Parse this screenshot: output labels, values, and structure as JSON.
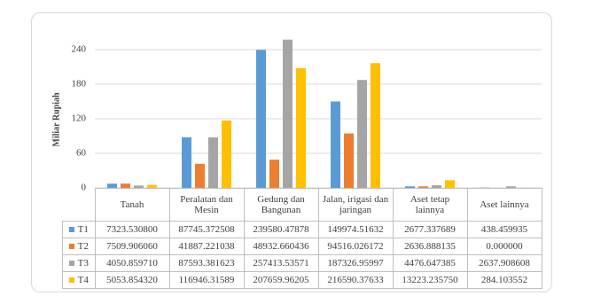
{
  "chart_data": {
    "type": "bar",
    "y_label": "Miliar Rupiah",
    "categories": [
      "Tanah",
      "Peralatan dan Mesin",
      "Gedung dan Bangunan",
      "Jalan, irigasi dan jaringan",
      "Aset tetap lainnya",
      "Aset lainnya"
    ],
    "series": [
      {
        "name": "T1",
        "color": "#5b9bd5",
        "values": [
          7.3235308,
          87.745372508,
          239.58047878,
          149.97451632,
          2.677337689,
          0.438459935
        ],
        "value_labels": [
          "7323.530800",
          "87745.372508",
          "239580.47878",
          "149974.51632",
          "2677.337689",
          "438.459935"
        ]
      },
      {
        "name": "T2",
        "color": "#ed7d31",
        "values": [
          7.50990606,
          41.887221038,
          48.932660436,
          94.516026172,
          2.636888135,
          0
        ],
        "value_labels": [
          "7509.906060",
          "41887.221038",
          "48932.660436",
          "94516.026172",
          "2636.888135",
          "0.000000"
        ]
      },
      {
        "name": "T3",
        "color": "#a5a5a5",
        "values": [
          4.05085971,
          87.593381623,
          257.41353571,
          187.32695997,
          4.476647385,
          2.637908608
        ],
        "value_labels": [
          "4050.859710",
          "87593.381623",
          "257413.53571",
          "187326.95997",
          "4476.647385",
          "2637.908608"
        ]
      },
      {
        "name": "T4",
        "color": "#ffc000",
        "values": [
          5.05385432,
          116.94631589,
          207.65996205,
          216.59037633,
          13.22323575,
          0.284103552
        ],
        "value_labels": [
          "5053.854320",
          "116946.31589",
          "207659.96205",
          "216590.37633",
          "13223.235750",
          "284.103552"
        ]
      }
    ],
    "ylim": [
      0,
      270
    ],
    "yticks": [
      0,
      60,
      120,
      180,
      240
    ],
    "grid": true
  }
}
